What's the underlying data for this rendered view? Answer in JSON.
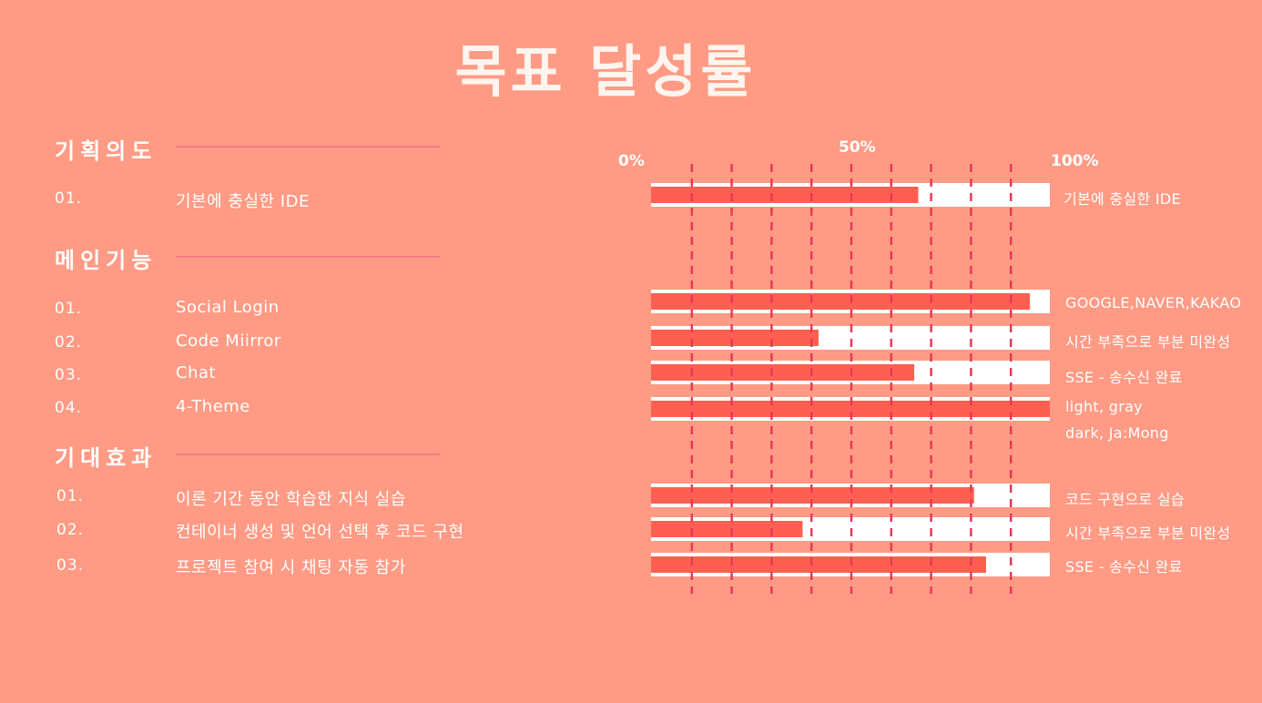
{
  "title": "목표 달성률",
  "sections": [
    {
      "heading": "기획의도",
      "items": [
        {
          "num": "01.",
          "label": "기본에 충실한 IDE"
        }
      ]
    },
    {
      "heading": "메인기능",
      "items": [
        {
          "num": "01.",
          "label": "Social Login"
        },
        {
          "num": "02.",
          "label": "Code Miirror"
        },
        {
          "num": "03.",
          "label": "Chat"
        },
        {
          "num": "04.",
          "label": "4-Theme"
        }
      ]
    },
    {
      "heading": "기대효과",
      "items": [
        {
          "num": "01.",
          "label": "이론 기간 동안 학습한 지식 실습"
        },
        {
          "num": "02.",
          "label": "컨테이너 생성 및 언어 선택 후 코드 구현"
        },
        {
          "num": "03.",
          "label": "프로젝트 참여 시 채팅 자동 참가"
        }
      ]
    }
  ],
  "colors": {
    "background": "#ff9a84",
    "bar_fill": "#ff5f50",
    "bar_track": "#ffffff",
    "gridline": "#e8395a",
    "section_rule": "#f27a86"
  },
  "chart_data": {
    "type": "bar",
    "orientation": "horizontal",
    "xlim": [
      0,
      100
    ],
    "tick_labels": [
      "0%",
      "50%",
      "100%"
    ],
    "gridlines": [
      10,
      20,
      30,
      40,
      50,
      60,
      70,
      80,
      90
    ],
    "bars": [
      {
        "value": 67,
        "note": [
          "기본에 충실한 IDE"
        ]
      },
      {
        "value": 95,
        "note": [
          "GOOGLE,NAVER,KAKAO"
        ]
      },
      {
        "value": 42,
        "note": [
          "시간 부족으로 부분 미완성"
        ]
      },
      {
        "value": 66,
        "note": [
          "SSE - 송수신 완료"
        ]
      },
      {
        "value": 100,
        "note": [
          "light, gray",
          "dark, Ja:Mong"
        ]
      },
      {
        "value": 81,
        "note": [
          "코드 구현으로 실습"
        ]
      },
      {
        "value": 38,
        "note": [
          "시간 부족으로 부분 미완성"
        ]
      },
      {
        "value": 84,
        "note": [
          "SSE - 송수신 완료"
        ]
      }
    ]
  }
}
